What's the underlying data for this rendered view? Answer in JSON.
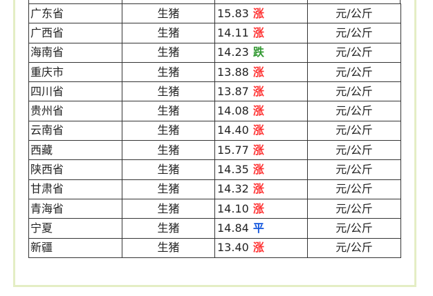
{
  "table": {
    "rows": [
      [
        "广东省",
        "生猪",
        "15.83",
        "涨",
        "元/公斤",
        "#ff3333"
      ],
      [
        "广西省",
        "生猪",
        "14.11",
        "涨",
        "元/公斤",
        "#ff3333"
      ],
      [
        "海南省",
        "生猪",
        "14.23",
        "跌",
        "元/公斤",
        "#339933"
      ],
      [
        "重庆市",
        "生猪",
        "13.88",
        "涨",
        "元/公斤",
        "#ff3333"
      ],
      [
        "四川省",
        "生猪",
        "13.87",
        "涨",
        "元/公斤",
        "#ff3333"
      ],
      [
        "贵州省",
        "生猪",
        "14.08",
        "涨",
        "元/公斤",
        "#ff3333"
      ],
      [
        "云南省",
        "生猪",
        "14.40",
        "涨",
        "元/公斤",
        "#ff3333"
      ],
      [
        "西藏",
        "生猪",
        "15.77",
        "涨",
        "元/公斤",
        "#ff3333"
      ],
      [
        "陕西省",
        "生猪",
        "14.35",
        "涨",
        "元/公斤",
        "#ff3333"
      ],
      [
        "甘肃省",
        "生猪",
        "14.32",
        "涨",
        "元/公斤",
        "#ff3333"
      ],
      [
        "青海省",
        "生猪",
        "14.10",
        "涨",
        "元/公斤",
        "#ff3333"
      ],
      [
        "宁夏",
        "生猪",
        "14.84",
        "平",
        "元/公斤",
        "#1155dd"
      ],
      [
        "新疆",
        "生猪",
        "13.40",
        "涨",
        "元/公斤",
        "#ff3333"
      ]
    ]
  }
}
